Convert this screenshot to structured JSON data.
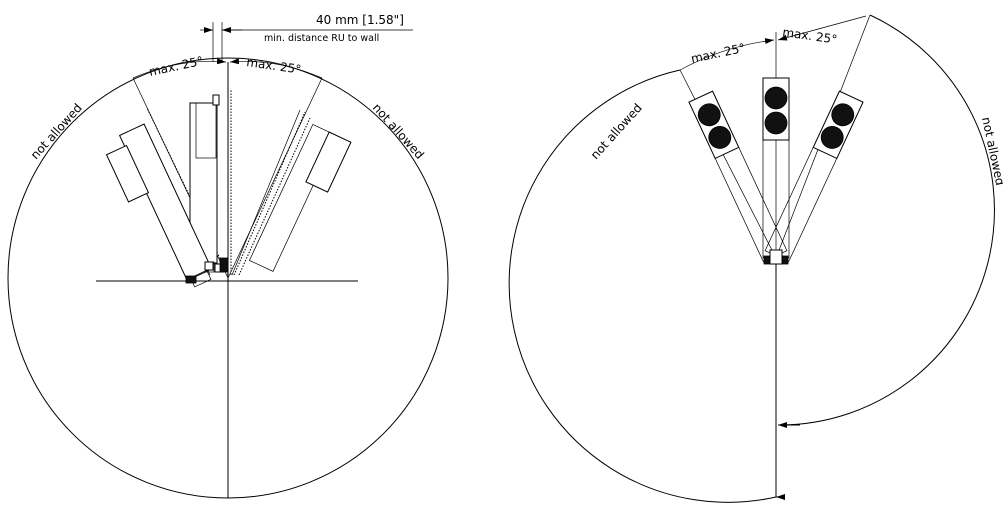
{
  "left_diagram": {
    "dimension_label": "40 mm [1.58\"]",
    "dimension_note": "min. distance RU to wall",
    "angle_left": "max. 25°",
    "angle_right": "max. 25°",
    "not_allowed_left": "not allowed",
    "not_allowed_right": "not allowed"
  },
  "right_diagram": {
    "angle_left": "max. 25°",
    "angle_right": "max. 25°",
    "not_allowed_left": "not allowed",
    "not_allowed_right": "not allowed"
  }
}
